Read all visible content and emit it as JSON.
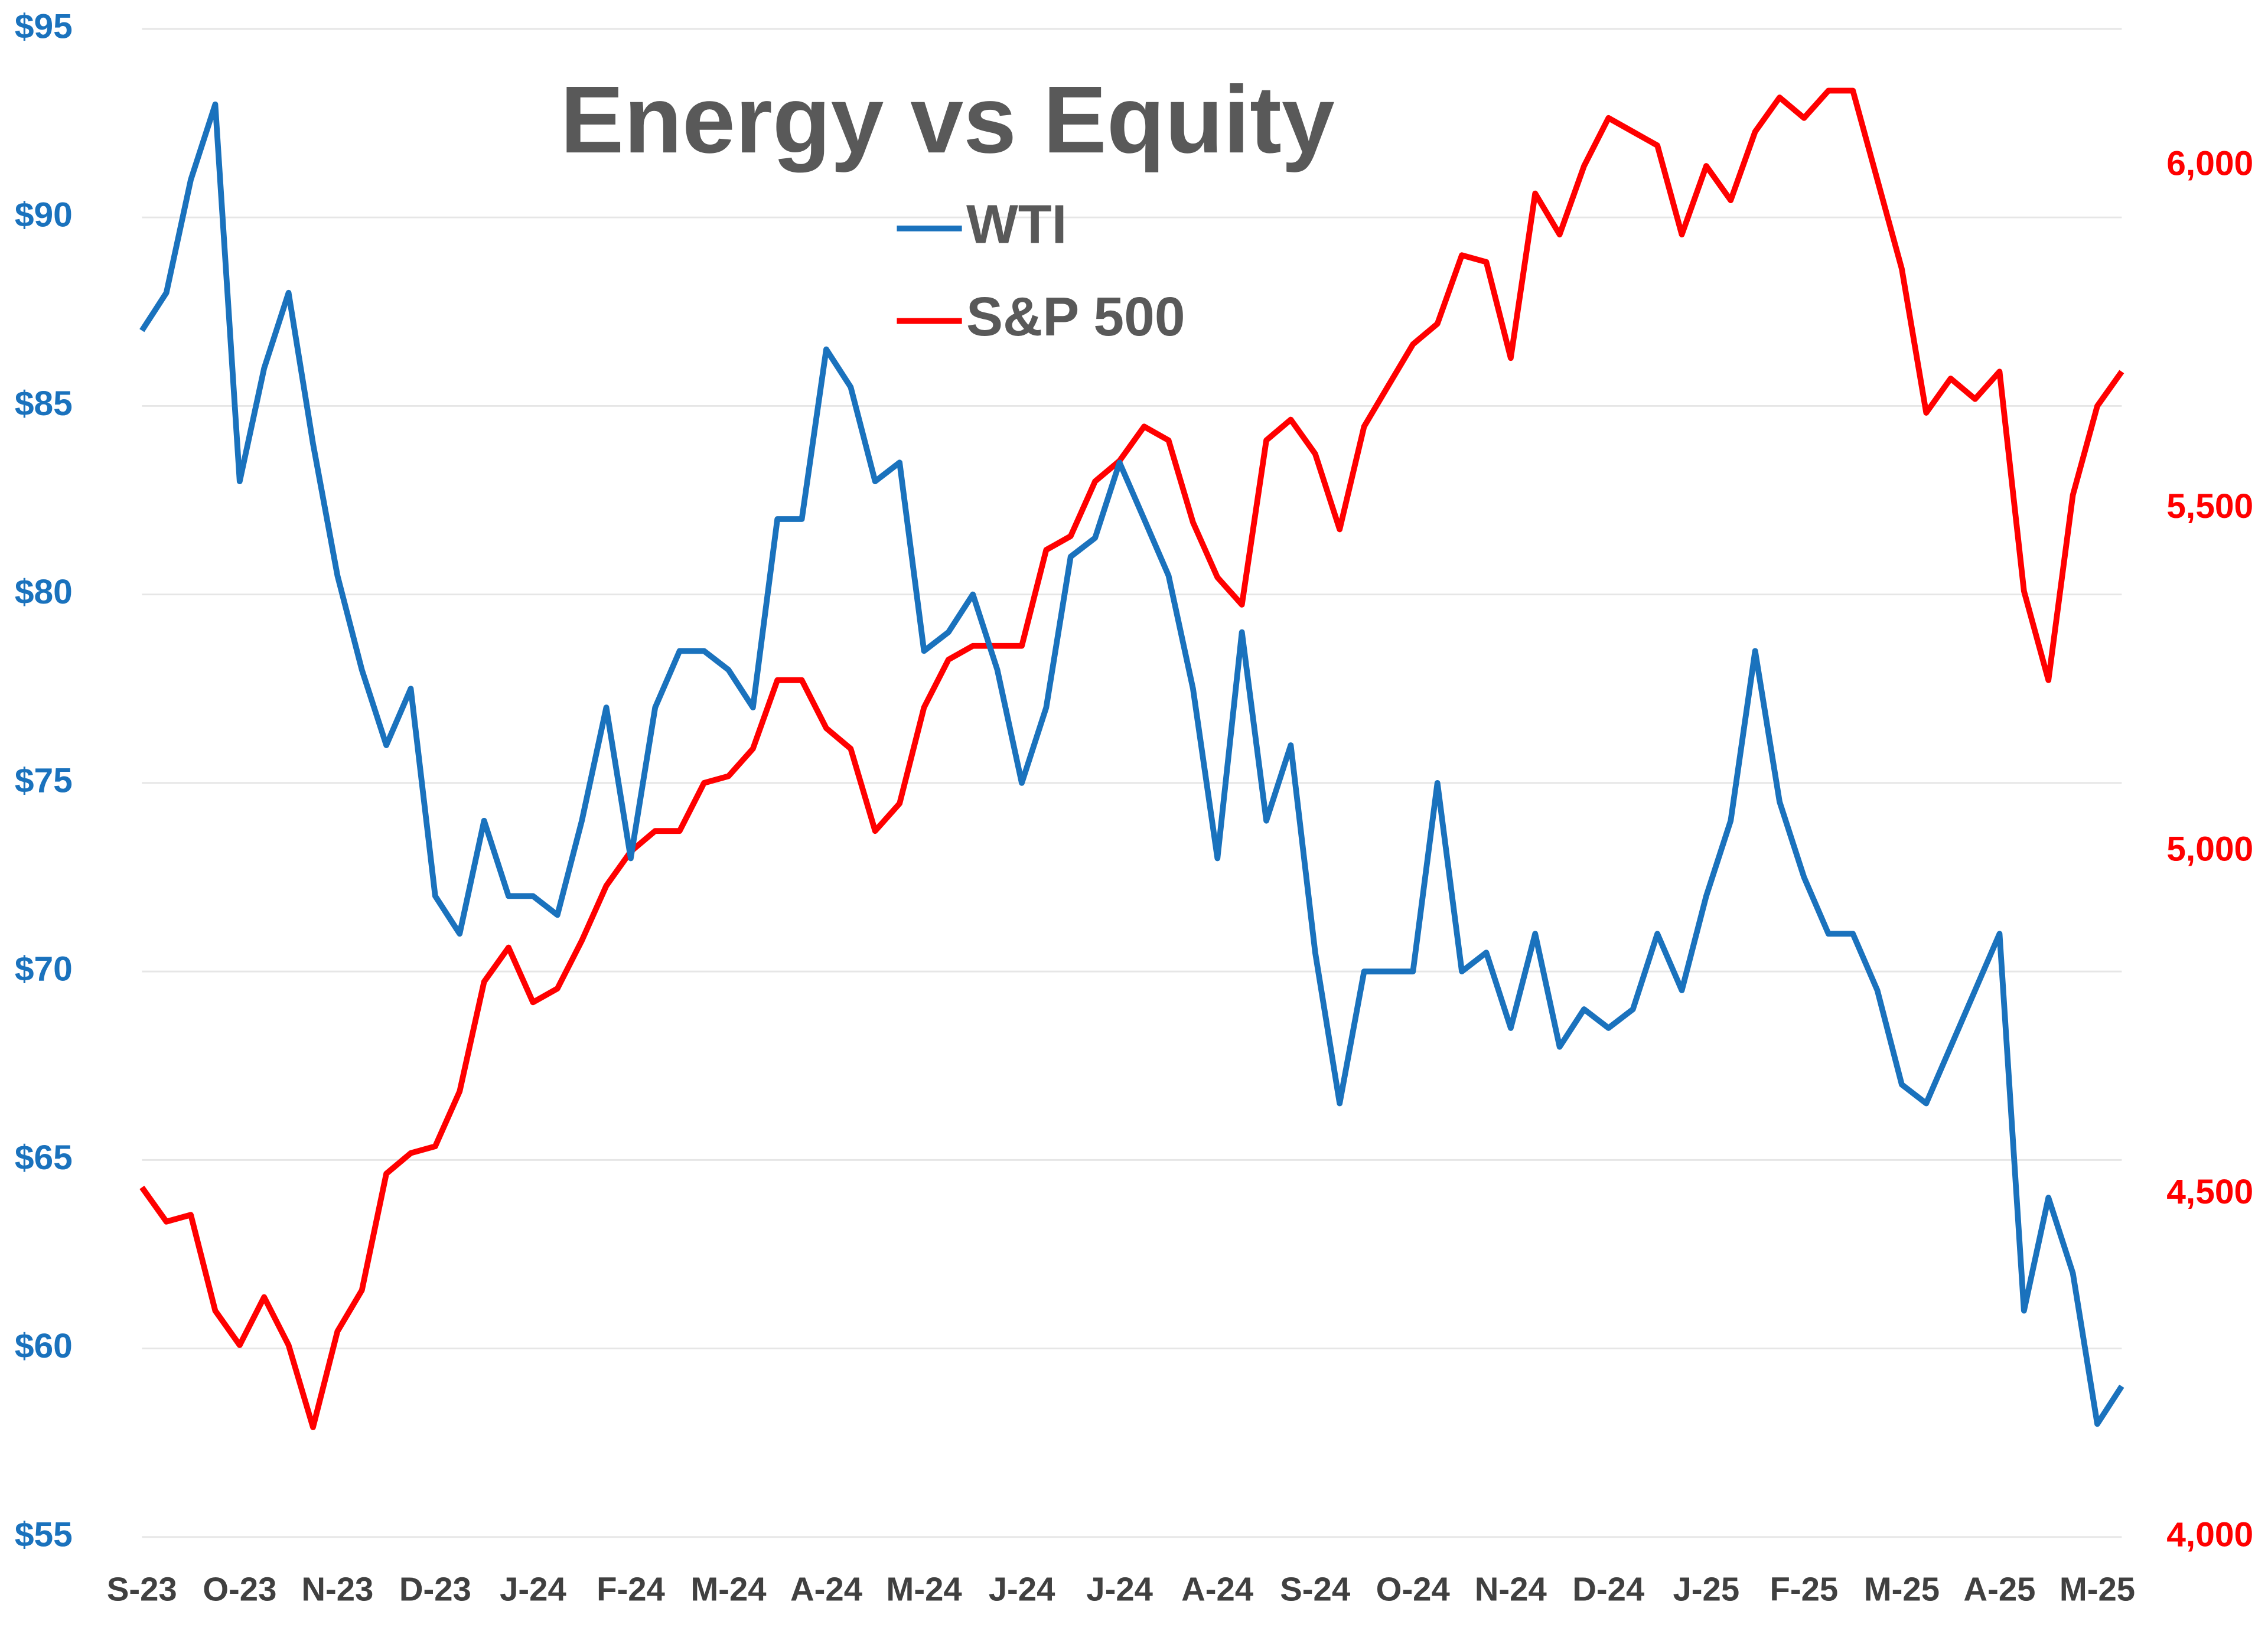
{
  "chart_data": {
    "type": "line",
    "title": "Energy vs Equity",
    "categories": [
      "S-23",
      null,
      null,
      null,
      "O-23",
      null,
      null,
      null,
      "N-23",
      null,
      null,
      null,
      "D-23",
      null,
      null,
      null,
      "J-24",
      null,
      null,
      null,
      "F-24",
      null,
      null,
      null,
      "M-24",
      null,
      null,
      null,
      "A-24",
      null,
      null,
      null,
      "M-24",
      null,
      null,
      null,
      "J-24",
      null,
      null,
      null,
      "J-24",
      null,
      null,
      null,
      "A-24",
      null,
      null,
      null,
      "S-24",
      null,
      null,
      null,
      "O-24",
      null,
      null,
      null,
      "N-24",
      null,
      null,
      null,
      "D-24",
      null,
      null,
      null,
      "J-25",
      null,
      null,
      null,
      "F-25",
      null,
      null,
      null,
      "M-25",
      null,
      null,
      null,
      "A-25",
      null,
      null,
      null,
      "M-25",
      null
    ],
    "series": [
      {
        "name": "WTI",
        "color": "#1a72bd",
        "axis": "y",
        "values": [
          87,
          88,
          91,
          93,
          83,
          86,
          88,
          84,
          80.5,
          78,
          76,
          77.5,
          72,
          71,
          74,
          72,
          72,
          71.5,
          74,
          77,
          73,
          77,
          78.5,
          78.5,
          78,
          77,
          82,
          82,
          86.5,
          85.5,
          83,
          83.5,
          78.5,
          79,
          80,
          78,
          75,
          77,
          81,
          81.5,
          83.5,
          82,
          80.5,
          77.5,
          73,
          79,
          74,
          76,
          70.5,
          66.5,
          70,
          70,
          70,
          75,
          70,
          70.5,
          68.5,
          71,
          68,
          69,
          68.5,
          69,
          71,
          69.5,
          72,
          74,
          78.5,
          74.5,
          72.5,
          71,
          71,
          69.5,
          67,
          66.5,
          68,
          69.5,
          71,
          61,
          64,
          62,
          58,
          59
        ]
      },
      {
        "name": "S&P 500",
        "color": "#ff0000",
        "axis": "y2",
        "values": [
          4510,
          4460,
          4470,
          4330,
          4280,
          4350,
          4280,
          4160,
          4300,
          4360,
          4530,
          4560,
          4570,
          4650,
          4810,
          4860,
          4780,
          4800,
          4870,
          4950,
          5000,
          5030,
          5030,
          5100,
          5110,
          5150,
          5250,
          5250,
          5180,
          5150,
          5030,
          5070,
          5210,
          5280,
          5300,
          5300,
          5300,
          5440,
          5460,
          5540,
          5570,
          5620,
          5600,
          5480,
          5400,
          5360,
          5600,
          5630,
          5580,
          5470,
          5620,
          5680,
          5740,
          5770,
          5870,
          5860,
          5720,
          5960,
          5900,
          6000,
          6070,
          6050,
          6030,
          5900,
          6000,
          5950,
          6050,
          6100,
          6070,
          6110,
          6110,
          5980,
          5850,
          5640,
          5690,
          5660,
          5700,
          5380,
          5250,
          5520,
          5650,
          5700
        ]
      }
    ],
    "ylim": [
      55,
      95
    ],
    "yticks": [
      {
        "value": 55,
        "label": "$55"
      },
      {
        "value": 60,
        "label": "$60"
      },
      {
        "value": 65,
        "label": "$65"
      },
      {
        "value": 70,
        "label": "$70"
      },
      {
        "value": 75,
        "label": "$75"
      },
      {
        "value": 80,
        "label": "$80"
      },
      {
        "value": 85,
        "label": "$85"
      },
      {
        "value": 90,
        "label": "$90"
      },
      {
        "value": 95,
        "label": "$95"
      }
    ],
    "y2lim": [
      4000,
      6200
    ],
    "y2ticks": [
      {
        "value": 4000,
        "label": "4,000"
      },
      {
        "value": 4500,
        "label": "4,500"
      },
      {
        "value": 5000,
        "label": "5,000"
      },
      {
        "value": 5500,
        "label": "5,500"
      },
      {
        "value": 6000,
        "label": "6,000"
      }
    ],
    "grid": true
  }
}
